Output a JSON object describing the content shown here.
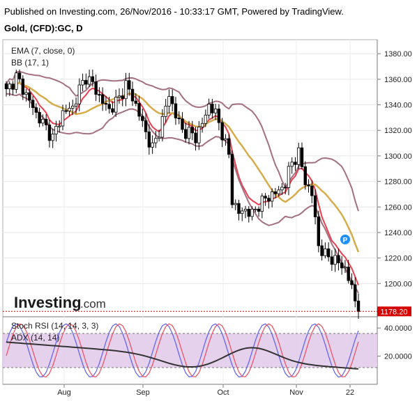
{
  "header": {
    "published": "Published on Investing.com, 26/Nov/2016 - 10:33:17 GMT, Powered by TradingView.",
    "symbol": "Gold, (CFD):GC, D"
  },
  "watermark": {
    "brand": "Investing",
    "suffix": ".com"
  },
  "colors": {
    "candle_up": "#ffffff",
    "candle_down": "#000000",
    "ema": "#e8404f",
    "bb_mid": "#d6ac4a",
    "bb_band": "#a4707f",
    "stoch_k": "#5b5ff0",
    "stoch_d": "#ee4b5f",
    "adx": "#333333",
    "rsi_fill": "#e1c9e7",
    "price_marker": "#cc0000",
    "event_marker": "#1e90ff"
  },
  "chart_data": [
    {
      "type": "candlestick",
      "title": "Gold, (CFD):GC, D",
      "indicators": [
        "EMA (7, close, 0)",
        "BB (17, 1)"
      ],
      "y_ticks": [
        1380.0,
        1360.0,
        1340.0,
        1320.0,
        1300.0,
        1280.0,
        1260.0,
        1240.0,
        1220.0,
        1200.0
      ],
      "ylim": [
        1174,
        1391
      ],
      "x_ticks": [
        "Aug",
        "Sep",
        "Oct",
        "Nov",
        "22"
      ],
      "last_price": "1178.20",
      "event_marker": "P",
      "grid": true
    },
    {
      "type": "line",
      "indicators": [
        "Stoch RSI (14, 14, 3, 3)",
        "ADX (14, 14)"
      ],
      "y_ticks": [
        "40.0000",
        "20.0000"
      ],
      "grid": true
    }
  ]
}
